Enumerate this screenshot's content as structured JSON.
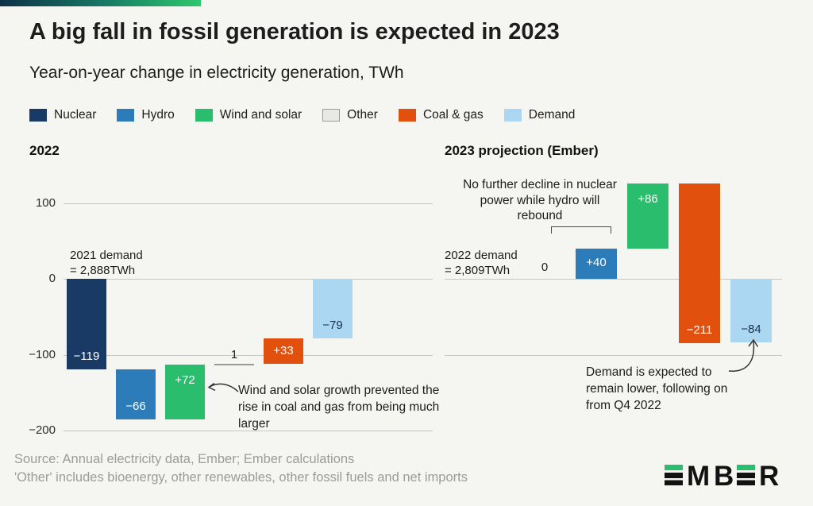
{
  "page": {
    "background": "#f5f5f2",
    "accent_gradient": [
      "#0e3147",
      "#187e66",
      "#2ec86e"
    ]
  },
  "header": {
    "title": "A big fall in fossil generation is expected in 2023",
    "subtitle": "Year-on-year change in electricity generation, TWh"
  },
  "palette": {
    "nuclear": "#1a3a66",
    "hydro": "#2b7cb9",
    "wind_solar": "#2abd6d",
    "other": "#e8e8e5",
    "other_border": "#9a9a98",
    "coal_gas": "#e2500e",
    "demand": "#abd7f3",
    "demand_label": "#16324f",
    "grid": "#c6c6c4",
    "logo_green": "#2dbd6e"
  },
  "legend": {
    "items": [
      {
        "label": "Nuclear",
        "key": "nuclear"
      },
      {
        "label": "Hydro",
        "key": "hydro"
      },
      {
        "label": "Wind and solar",
        "key": "wind_solar"
      },
      {
        "label": "Other",
        "key": "other"
      },
      {
        "label": "Coal & gas",
        "key": "coal_gas"
      },
      {
        "label": "Demand",
        "key": "demand"
      }
    ]
  },
  "chart_data": [
    {
      "type": "bar",
      "variant": "waterfall",
      "title": "2022",
      "ylabel": "TWh",
      "ylim": [
        -200,
        100
      ],
      "yticks": [
        100,
        0,
        -100,
        -200
      ],
      "ytick_labels": [
        "100",
        "0",
        "−100",
        "−200"
      ],
      "show_tick_labels": true,
      "bars": [
        {
          "category": "Nuclear",
          "value": -119,
          "label": "−119",
          "key": "nuclear"
        },
        {
          "category": "Hydro",
          "value": -66,
          "label": "−66",
          "key": "hydro"
        },
        {
          "category": "Wind and solar",
          "value": 72,
          "label": "+72",
          "key": "wind_solar"
        },
        {
          "category": "Other",
          "value": 1,
          "label": "1",
          "key": "other"
        },
        {
          "category": "Coal & gas",
          "value": 33,
          "label": "+33",
          "key": "coal_gas"
        },
        {
          "category": "Demand",
          "value": -79,
          "label": "−79",
          "key": "demand",
          "is_total": true
        }
      ],
      "start_note": "2021 demand\n= 2,888TWh",
      "annotation": "Wind and solar growth prevented the rise in coal and gas from being much larger"
    },
    {
      "type": "bar",
      "variant": "waterfall",
      "title": "2023 projection (Ember)",
      "ylabel": "TWh",
      "ylim": [
        -150,
        150
      ],
      "yticks": [
        0,
        -100
      ],
      "ytick_labels": [],
      "show_tick_labels": false,
      "bars": [
        {
          "category": "Nuclear",
          "value": 0,
          "label": "0",
          "key": "nuclear"
        },
        {
          "category": "Hydro",
          "value": 40,
          "label": "+40",
          "key": "hydro"
        },
        {
          "category": "Wind and solar",
          "value": 86,
          "label": "+86",
          "key": "wind_solar"
        },
        {
          "category": "Coal & gas",
          "value": -211,
          "label": "−211",
          "key": "coal_gas"
        },
        {
          "category": "Demand",
          "value": -84,
          "label": "−84",
          "key": "demand",
          "is_total": true
        }
      ],
      "start_note": "2022 demand\n= 2,809TWh",
      "bracket_note": "No further decline in nuclear power while hydro will rebound",
      "annotation": "Demand is expected to remain lower, following on from Q4 2022"
    }
  ],
  "footer": {
    "source": "Source: Annual electricity data, Ember; Ember calculations",
    "note": "'Other' includes bioenergy, other renewables, other fossil fuels and net imports",
    "logo_letters": [
      "E",
      "M",
      "B",
      "E",
      "R"
    ]
  }
}
